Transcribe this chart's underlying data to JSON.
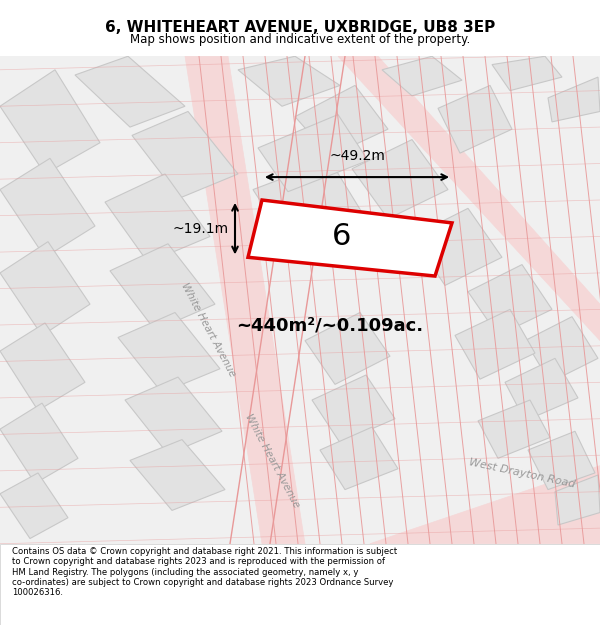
{
  "title": "6, WHITEHEART AVENUE, UXBRIDGE, UB8 3EP",
  "subtitle": "Map shows position and indicative extent of the property.",
  "footer": "Contains OS data © Crown copyright and database right 2021. This information is subject\nto Crown copyright and database rights 2023 and is reproduced with the permission of\nHM Land Registry. The polygons (including the associated geometry, namely x, y\nco-ordinates) are subject to Crown copyright and database rights 2023 Ordnance Survey\n100026316.",
  "map_bg": "#f0f0f0",
  "road_color": "#f5d8d8",
  "building_color": "#e2e2e2",
  "building_edge": "#c8c8c8",
  "highlight_color": "#dd0000",
  "label_number": "6",
  "area_label": "~440m²/~0.109ac.",
  "width_label": "~49.2m",
  "height_label": "~19.1m",
  "road_label_1": "White Heart Avenue",
  "road_label_2": "White Heart Avenue",
  "road_label_3": "West Drayton Road",
  "cadastral_color": "#e89898"
}
